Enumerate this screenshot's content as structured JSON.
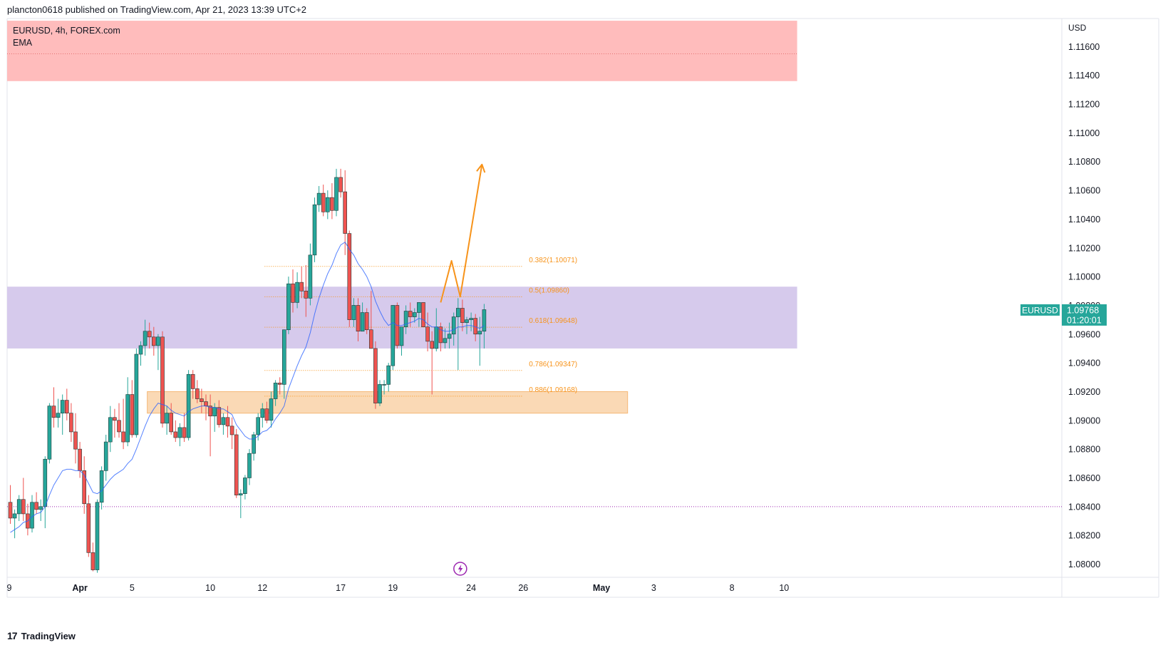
{
  "header": {
    "publish_line": "plancton0618 published on TradingView.com, Apr 21, 2023 13:39 UTC+2"
  },
  "legend": {
    "symbol_line": "EURUSD, 4h, FOREX.com",
    "indicator": "EMA"
  },
  "footer": {
    "brand": "TradingView",
    "logo_glyph": "17"
  },
  "price_axis": {
    "currency": "USD",
    "last_label_symbol": "EURUSD",
    "last_price": "1.09768",
    "countdown": "01:20:01"
  },
  "colors": {
    "up": "#26a69a",
    "down": "#ef5350",
    "ema": "#2962ff",
    "fib": "#f7931a",
    "supply_zone": "#ffbcbc",
    "range_zone": "#d6caec",
    "demand_zone": "#fad9b5",
    "support_line": "#9c27b0",
    "last_price_badge": "#26a69a",
    "alert_icon": "#9c27b0"
  },
  "chart_data": {
    "type": "candlestick",
    "symbol": "EURUSD",
    "timeframe": "4h",
    "y_ticks": [
      "1.11600",
      "1.11400",
      "1.11200",
      "1.11000",
      "1.10800",
      "1.10600",
      "1.10400",
      "1.10200",
      "1.10000",
      "1.09800",
      "1.09600",
      "1.09400",
      "1.09200",
      "1.09000",
      "1.08800",
      "1.08600",
      "1.08400",
      "1.08200",
      "1.08000"
    ],
    "ylim": [
      1.0792,
      1.1177
    ],
    "x_ticks": [
      {
        "label": "9",
        "bar": -2,
        "bold": false
      },
      {
        "label": "Apr",
        "bar": 16,
        "bold": true
      },
      {
        "label": "5",
        "bar": 28,
        "bold": false
      },
      {
        "label": "10",
        "bar": 46,
        "bold": false
      },
      {
        "label": "12",
        "bar": 58,
        "bold": false
      },
      {
        "label": "17",
        "bar": 76,
        "bold": false
      },
      {
        "label": "19",
        "bar": 88,
        "bold": false
      },
      {
        "label": "24",
        "bar": 106,
        "bold": false
      },
      {
        "label": "26",
        "bar": 118,
        "bold": false
      },
      {
        "label": "May",
        "bar": 136,
        "bold": true
      },
      {
        "label": "3",
        "bar": 148,
        "bold": false
      },
      {
        "label": "8",
        "bar": 166,
        "bold": false
      },
      {
        "label": "10",
        "bar": 178,
        "bold": false
      }
    ],
    "candles": [
      [
        1.0843,
        1.0855,
        1.0828,
        1.0832
      ],
      [
        1.0832,
        1.0838,
        1.0818,
        1.0835
      ],
      [
        1.0835,
        1.0848,
        1.083,
        1.0845
      ],
      [
        1.0845,
        1.086,
        1.083,
        1.0835
      ],
      [
        1.0835,
        1.0842,
        1.082,
        1.0825
      ],
      [
        1.0825,
        1.0848,
        1.0822,
        1.0843
      ],
      [
        1.0843,
        1.085,
        1.0835,
        1.0838
      ],
      [
        1.0838,
        1.0845,
        1.083,
        1.084
      ],
      [
        1.084,
        1.0875,
        1.0825,
        1.0873
      ],
      [
        1.0873,
        1.0912,
        1.087,
        1.091
      ],
      [
        1.091,
        1.0923,
        1.0895,
        1.0902
      ],
      [
        1.0902,
        1.0915,
        1.0895,
        1.0905
      ],
      [
        1.0905,
        1.0918,
        1.089,
        1.0914
      ],
      [
        1.0914,
        1.0922,
        1.09,
        1.0905
      ],
      [
        1.0905,
        1.0912,
        1.0885,
        1.0892
      ],
      [
        1.0892,
        1.0905,
        1.087,
        1.088
      ],
      [
        1.088,
        1.0885,
        1.086,
        1.0865
      ],
      [
        1.0865,
        1.0875,
        1.0835,
        1.0842
      ],
      [
        1.0842,
        1.0848,
        1.0805,
        1.0808
      ],
      [
        1.0808,
        1.0815,
        1.0795,
        1.0796
      ],
      [
        1.0796,
        1.0845,
        1.0794,
        1.0843
      ],
      [
        1.0843,
        1.0868,
        1.0838,
        1.0865
      ],
      [
        1.0865,
        1.089,
        1.0858,
        1.0885
      ],
      [
        1.0885,
        1.091,
        1.0878,
        1.0902
      ],
      [
        1.0902,
        1.0908,
        1.0888,
        1.09
      ],
      [
        1.09,
        1.0912,
        1.0888,
        1.0892
      ],
      [
        1.0892,
        1.0915,
        1.088,
        1.0885
      ],
      [
        1.0885,
        1.093,
        1.0882,
        1.0918
      ],
      [
        1.0918,
        1.0928,
        1.0888,
        1.089
      ],
      [
        1.089,
        1.095,
        1.0888,
        1.0946
      ],
      [
        1.0946,
        1.0955,
        1.0938,
        1.0952
      ],
      [
        1.0952,
        1.097,
        1.0945,
        1.0962
      ],
      [
        1.0962,
        1.0968,
        1.095,
        1.0958
      ],
      [
        1.0958,
        1.0965,
        1.0945,
        1.0952
      ],
      [
        1.0952,
        1.096,
        1.0935,
        1.0958
      ],
      [
        1.0958,
        1.0962,
        1.0895,
        1.0898
      ],
      [
        1.0898,
        1.091,
        1.089,
        1.0905
      ],
      [
        1.0905,
        1.0912,
        1.089,
        1.0892
      ],
      [
        1.0892,
        1.09,
        1.0885,
        1.0888
      ],
      [
        1.0888,
        1.0898,
        1.0882,
        1.0895
      ],
      [
        1.0895,
        1.0905,
        1.0885,
        1.0888
      ],
      [
        1.0888,
        1.0935,
        1.0886,
        1.0932
      ],
      [
        1.0932,
        1.0935,
        1.0915,
        1.0922
      ],
      [
        1.0922,
        1.0928,
        1.0912,
        1.0915
      ],
      [
        1.0915,
        1.0922,
        1.0905,
        1.0913
      ],
      [
        1.0913,
        1.0918,
        1.09,
        1.091
      ],
      [
        1.091,
        1.0918,
        1.0875,
        1.0903
      ],
      [
        1.0903,
        1.0912,
        1.0892,
        1.0909
      ],
      [
        1.0909,
        1.0914,
        1.0895,
        1.0897
      ],
      [
        1.0897,
        1.0905,
        1.089,
        1.0902
      ],
      [
        1.0902,
        1.091,
        1.0888,
        1.0896
      ],
      [
        1.0896,
        1.0902,
        1.088,
        1.089
      ],
      [
        1.089,
        1.0894,
        1.0846,
        1.0848
      ],
      [
        1.0848,
        1.0852,
        1.0832,
        1.0849
      ],
      [
        1.0849,
        1.0862,
        1.0845,
        1.086
      ],
      [
        1.086,
        1.088,
        1.0855,
        1.0877
      ],
      [
        1.0877,
        1.0892,
        1.0872,
        1.089
      ],
      [
        1.089,
        1.0905,
        1.0886,
        1.0902
      ],
      [
        1.0902,
        1.0912,
        1.0895,
        1.0908
      ],
      [
        1.0908,
        1.0913,
        1.0898,
        1.09
      ],
      [
        1.09,
        1.092,
        1.0895,
        1.0915
      ],
      [
        1.0915,
        1.0928,
        1.091,
        1.0926
      ],
      [
        1.0926,
        1.093,
        1.0918,
        1.0925
      ],
      [
        1.0925,
        1.0962,
        1.0915,
        1.0963
      ],
      [
        1.0963,
        1.1,
        1.096,
        1.0995
      ],
      [
        1.0995,
        1.1005,
        1.0975,
        1.0982
      ],
      [
        1.0982,
        1.1003,
        1.0978,
        1.0996
      ],
      [
        1.0996,
        1.1007,
        1.0985,
        1.099
      ],
      [
        1.099,
        1.1008,
        1.0972,
        1.0985
      ],
      [
        1.0985,
        1.1023,
        1.098,
        1.1015
      ],
      [
        1.1015,
        1.1055,
        1.101,
        1.105
      ],
      [
        1.105,
        1.1063,
        1.1045,
        1.1058
      ],
      [
        1.1058,
        1.1064,
        1.1042,
        1.1045
      ],
      [
        1.1045,
        1.106,
        1.104,
        1.1055
      ],
      [
        1.1055,
        1.1065,
        1.104,
        1.1046
      ],
      [
        1.1046,
        1.1075,
        1.1042,
        1.1069
      ],
      [
        1.1069,
        1.1075,
        1.1055,
        1.1059
      ],
      [
        1.1059,
        1.1074,
        1.1015,
        1.103
      ],
      [
        1.103,
        1.1032,
        1.0965,
        1.097
      ],
      [
        1.097,
        1.0985,
        1.0965,
        1.098
      ],
      [
        1.098,
        1.0985,
        1.0955,
        1.0962
      ],
      [
        1.0962,
        1.0982,
        1.0962,
        1.0975
      ],
      [
        1.0975,
        1.0978,
        1.096,
        1.0963
      ],
      [
        1.0963,
        1.099,
        1.095,
        1.095
      ],
      [
        1.095,
        1.0955,
        1.0908,
        1.0912
      ],
      [
        1.0912,
        1.0928,
        1.091,
        1.0925
      ],
      [
        1.0925,
        1.0928,
        1.0918,
        1.0925
      ],
      [
        1.0925,
        1.094,
        1.092,
        1.0938
      ],
      [
        1.0938,
        1.098,
        1.0935,
        1.098
      ],
      [
        1.098,
        1.0982,
        1.095,
        1.0952
      ],
      [
        1.0952,
        1.0965,
        1.0945,
        1.0965
      ],
      [
        1.0965,
        1.098,
        1.096,
        1.0976
      ],
      [
        1.0976,
        1.0982,
        1.0965,
        1.0972
      ],
      [
        1.0972,
        1.0978,
        1.0968,
        1.0975
      ],
      [
        1.0975,
        1.0982,
        1.0965,
        1.0982
      ],
      [
        1.0982,
        1.0982,
        1.0965,
        1.0965
      ],
      [
        1.0965,
        1.0975,
        1.0948,
        1.0955
      ],
      [
        1.0955,
        1.0962,
        1.0918,
        1.095
      ],
      [
        1.095,
        1.0978,
        1.0948,
        1.0965
      ],
      [
        1.0965,
        1.0968,
        1.0948,
        1.0954
      ],
      [
        1.0954,
        1.0964,
        1.095,
        1.0957
      ],
      [
        1.0957,
        1.0968,
        1.095,
        1.096
      ],
      [
        1.096,
        1.0975,
        1.0952,
        1.0972
      ],
      [
        1.0972,
        1.0985,
        1.0935,
        1.0978
      ],
      [
        1.0978,
        1.0984,
        1.0962,
        1.0968
      ],
      [
        1.0968,
        1.0972,
        1.096,
        1.097
      ],
      [
        1.097,
        1.0975,
        1.0962,
        1.0971
      ],
      [
        1.0971,
        1.0974,
        1.0955,
        1.096
      ],
      [
        1.096,
        1.0972,
        1.0938,
        1.0962
      ],
      [
        1.0962,
        1.0981,
        1.095,
        1.0977
      ]
    ],
    "ema": [
      1.0822,
      1.0824,
      1.0826,
      1.0829,
      1.083,
      1.0833,
      1.0835,
      1.0836,
      1.084,
      1.0848,
      1.0855,
      1.086,
      1.0865,
      1.0866,
      1.0866,
      1.0865,
      1.0865,
      1.0862,
      1.0856,
      1.085,
      1.0849,
      1.0851,
      1.0855,
      1.0859,
      1.0862,
      1.0864,
      1.0866,
      1.087,
      1.0873,
      1.088,
      1.0888,
      1.0896,
      1.0903,
      1.0908,
      1.0912,
      1.0911,
      1.091,
      1.0907,
      1.0905,
      1.0904,
      1.0903,
      1.0906,
      1.0908,
      1.0909,
      1.091,
      1.091,
      1.0909,
      1.0909,
      1.0908,
      1.0908,
      1.0906,
      1.0904,
      1.0897,
      1.0893,
      1.0889,
      1.0887,
      1.0887,
      1.0889,
      1.0892,
      1.0893,
      1.0896,
      1.0901,
      1.0905,
      1.091,
      1.0922,
      1.093,
      1.0938,
      1.0945,
      1.0951,
      1.0961,
      1.0974,
      1.0985,
      1.0994,
      1.1002,
      1.1008,
      1.1016,
      1.1022,
      1.1024,
      1.1019,
      1.1015,
      1.1009,
      1.1005,
      1.1,
      1.0993,
      1.0983,
      1.0976,
      1.097,
      1.0966,
      1.0968,
      1.0966,
      1.0966,
      1.0967,
      1.0968,
      1.0969,
      1.0971,
      1.097,
      1.0967,
      1.0965,
      1.0965,
      1.0963,
      1.0962,
      1.0962,
      1.0963,
      1.0965,
      1.0965,
      1.0966,
      1.0966,
      1.0965,
      1.0964,
      1.0966
    ],
    "fib_levels": [
      {
        "ratio": "0.382",
        "price": 1.10071,
        "label": "0.382(1.10071)"
      },
      {
        "ratio": "0.5",
        "price": 1.0986,
        "label": "0.5(1.09860)"
      },
      {
        "ratio": "0.618",
        "price": 1.09648,
        "label": "0.618(1.09648)"
      },
      {
        "ratio": "0.786",
        "price": 1.09347,
        "label": "0.786(1.09347)"
      },
      {
        "ratio": "0.886",
        "price": 1.09168,
        "label": "0.886(1.09168)"
      }
    ],
    "fib_bar_range": [
      58.5,
      118
    ],
    "zones": [
      {
        "name": "supply",
        "top": 1.1178,
        "bottom": 1.1136,
        "bar_from": -2.5,
        "bar_to": 181,
        "midline": 1.1155
      },
      {
        "name": "range",
        "top": 1.0993,
        "bottom": 1.095,
        "bar_from": -2.5,
        "bar_to": 181
      },
      {
        "name": "demand",
        "top": 1.092,
        "bottom": 1.0905,
        "bar_from": 31.5,
        "bar_to": 142
      }
    ],
    "support_line": {
      "price": 1.084,
      "bar_from": -2.5,
      "bar_to": 181
    },
    "projection": [
      [
        99,
        1.0982
      ],
      [
        101.5,
        1.1011
      ],
      [
        103.5,
        1.0986
      ],
      [
        108.5,
        1.1078
      ]
    ],
    "alert_bar": 103.5
  }
}
